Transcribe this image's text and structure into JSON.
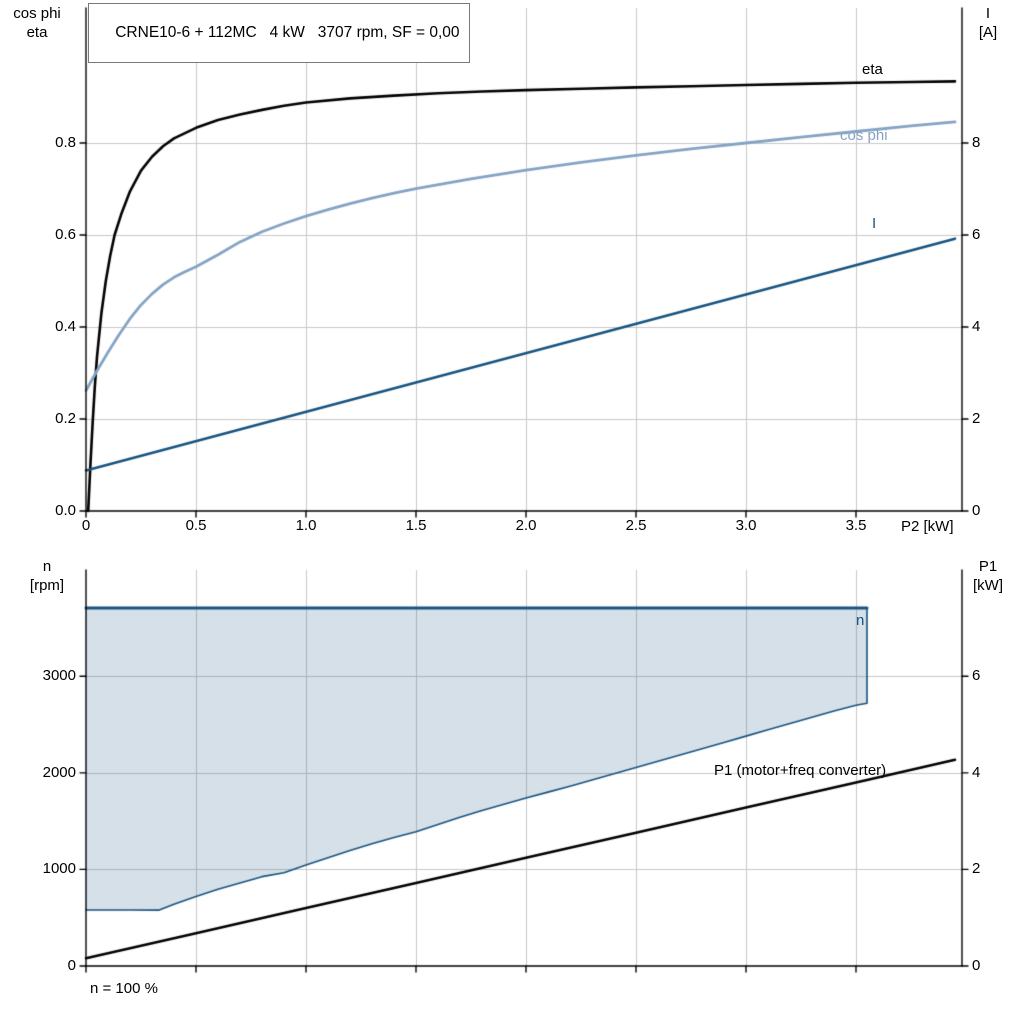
{
  "title": "CRNE10-6 + 112MC   4 kW   3707 rpm, SF = 0,00",
  "axes": {
    "top_left_1": "cos phi",
    "top_left_2": "eta",
    "top_right_1": "I",
    "top_right_2": "[A]",
    "x_label": "P2 [kW]",
    "bottom_left_1": "n",
    "bottom_left_2": "[rpm]",
    "bottom_right_1": "P1",
    "bottom_right_2": "[kW]"
  },
  "labels": {
    "eta": "eta",
    "cos_phi": "cos phi",
    "current": "I",
    "n": "n",
    "p1": "P1 (motor+freq converter)",
    "footnote": "n = 100 %"
  },
  "colors": {
    "black": "#000000",
    "dark_blue": "#185380",
    "steel_blue": "#84a3c4",
    "grid": "#c9c9c9",
    "fill": "rgba(24,83,128,0.18)"
  },
  "chart_data": [
    {
      "type": "line",
      "title": "CRNE10-6 + 112MC 4 kW 3707 rpm, SF = 0,00",
      "xlabel": "P2 [kW]",
      "ylabel_left": "cos phi / eta",
      "ylabel_right": "I [A]",
      "xlim": [
        0,
        4.0
      ],
      "ylim_left": [
        0,
        1.09
      ],
      "ylim_right": [
        0,
        10.9
      ],
      "grid": true,
      "x_ticks": [
        0,
        0.5,
        1.0,
        1.5,
        2.0,
        2.5,
        3.0,
        3.5
      ],
      "x_tick_labels": [
        "0",
        "0.5",
        "1.0",
        "1.5",
        "2.0",
        "2.5",
        "3.0",
        "3.5"
      ],
      "left_ticks": [
        0,
        0.2,
        0.4,
        0.6,
        0.8
      ],
      "left_tick_labels": [
        "0.0",
        "0.2",
        "0.4",
        "0.6",
        "0.8"
      ],
      "right_ticks": [
        0,
        2,
        4,
        6,
        8
      ],
      "series": [
        {
          "name": "eta",
          "axis": "left",
          "color": "#000000",
          "width": 2.6,
          "points": [
            [
              0.01,
              0.0
            ],
            [
              0.02,
              0.1
            ],
            [
              0.03,
              0.19
            ],
            [
              0.04,
              0.27
            ],
            [
              0.05,
              0.335
            ],
            [
              0.07,
              0.43
            ],
            [
              0.09,
              0.5
            ],
            [
              0.11,
              0.555
            ],
            [
              0.13,
              0.6
            ],
            [
              0.16,
              0.645
            ],
            [
              0.2,
              0.695
            ],
            [
              0.25,
              0.74
            ],
            [
              0.3,
              0.77
            ],
            [
              0.35,
              0.793
            ],
            [
              0.4,
              0.81
            ],
            [
              0.5,
              0.833
            ],
            [
              0.6,
              0.85
            ],
            [
              0.7,
              0.862
            ],
            [
              0.8,
              0.872
            ],
            [
              0.9,
              0.881
            ],
            [
              1.0,
              0.888
            ],
            [
              1.2,
              0.897
            ],
            [
              1.4,
              0.903
            ],
            [
              1.6,
              0.908
            ],
            [
              1.8,
              0.912
            ],
            [
              2.0,
              0.915
            ],
            [
              2.25,
              0.918
            ],
            [
              2.5,
              0.921
            ],
            [
              2.75,
              0.9235
            ],
            [
              3.0,
              0.926
            ],
            [
              3.25,
              0.9285
            ],
            [
              3.5,
              0.931
            ],
            [
              3.75,
              0.9325
            ],
            [
              3.95,
              0.934
            ]
          ]
        },
        {
          "name": "cos phi",
          "axis": "left",
          "color": "#84a3c4",
          "width": 2.8,
          "points": [
            [
              0,
              0.262
            ],
            [
              0.05,
              0.305
            ],
            [
              0.1,
              0.345
            ],
            [
              0.15,
              0.383
            ],
            [
              0.2,
              0.418
            ],
            [
              0.25,
              0.448
            ],
            [
              0.3,
              0.472
            ],
            [
              0.35,
              0.492
            ],
            [
              0.4,
              0.508
            ],
            [
              0.45,
              0.52
            ],
            [
              0.5,
              0.531
            ],
            [
              0.6,
              0.557
            ],
            [
              0.7,
              0.585
            ],
            [
              0.8,
              0.607
            ],
            [
              0.9,
              0.625
            ],
            [
              1.0,
              0.641
            ],
            [
              1.1,
              0.655
            ],
            [
              1.2,
              0.668
            ],
            [
              1.3,
              0.68
            ],
            [
              1.4,
              0.691
            ],
            [
              1.5,
              0.701
            ],
            [
              1.75,
              0.722
            ],
            [
              2.0,
              0.741
            ],
            [
              2.25,
              0.758
            ],
            [
              2.5,
              0.773
            ],
            [
              2.75,
              0.787
            ],
            [
              3.0,
              0.8
            ],
            [
              3.25,
              0.813
            ],
            [
              3.5,
              0.825
            ],
            [
              3.75,
              0.837
            ],
            [
              3.95,
              0.846
            ]
          ]
        },
        {
          "name": "I",
          "axis": "right",
          "color": "#185380",
          "width": 2.6,
          "points": [
            [
              0,
              0.88
            ],
            [
              3.95,
              5.92
            ]
          ]
        }
      ]
    },
    {
      "type": "line",
      "xlabel": "",
      "ylabel_left": "n [rpm]",
      "ylabel_right": "P1 [kW]",
      "xlim": [
        0,
        4.0
      ],
      "ylim_left": [
        0,
        4100
      ],
      "ylim_right": [
        0,
        8.2
      ],
      "grid": true,
      "annotation": "n = 100 %",
      "x_ticks": [
        0,
        0.5,
        1.0,
        1.5,
        2.0,
        2.5,
        3.0,
        3.5
      ],
      "left_ticks": [
        0,
        1000,
        2000,
        3000
      ],
      "right_ticks": [
        0,
        2,
        4,
        6
      ],
      "series": [
        {
          "name": "n",
          "axis": "left",
          "color": "#185380",
          "width": 3,
          "boundary_width": 1.6,
          "fill": "rgba(24,83,128,0.18)",
          "n_max": 3707,
          "x_end": 3.55,
          "lower_boundary": [
            [
              0,
              580
            ],
            [
              0.2,
              580
            ],
            [
              0.33,
              578
            ],
            [
              0.4,
              640
            ],
            [
              0.5,
              720
            ],
            [
              0.6,
              795
            ],
            [
              0.7,
              860
            ],
            [
              0.8,
              925
            ],
            [
              0.9,
              965
            ],
            [
              1.0,
              1045
            ],
            [
              1.1,
              1120
            ],
            [
              1.2,
              1195
            ],
            [
              1.3,
              1265
            ],
            [
              1.4,
              1330
            ],
            [
              1.5,
              1390
            ],
            [
              1.6,
              1465
            ],
            [
              1.7,
              1540
            ],
            [
              1.8,
              1610
            ],
            [
              1.9,
              1675
            ],
            [
              2.0,
              1740
            ],
            [
              2.1,
              1800
            ],
            [
              2.2,
              1860
            ],
            [
              2.3,
              1925
            ],
            [
              2.4,
              1990
            ],
            [
              2.5,
              2055
            ],
            [
              2.6,
              2120
            ],
            [
              2.7,
              2185
            ],
            [
              2.8,
              2250
            ],
            [
              2.9,
              2315
            ],
            [
              3.0,
              2380
            ],
            [
              3.1,
              2445
            ],
            [
              3.2,
              2510
            ],
            [
              3.3,
              2575
            ],
            [
              3.4,
              2640
            ],
            [
              3.5,
              2700
            ],
            [
              3.55,
              2720
            ]
          ]
        },
        {
          "name": "P1 (motor+freq converter)",
          "axis": "right",
          "color": "#000000",
          "width": 2.6,
          "points": [
            [
              0,
              0.16
            ],
            [
              0.5,
              0.68
            ],
            [
              1.0,
              1.2
            ],
            [
              1.5,
              1.72
            ],
            [
              2.0,
              2.24
            ],
            [
              2.5,
              2.76
            ],
            [
              3.0,
              3.28
            ],
            [
              3.5,
              3.8
            ],
            [
              3.95,
              4.27
            ]
          ]
        }
      ]
    }
  ]
}
